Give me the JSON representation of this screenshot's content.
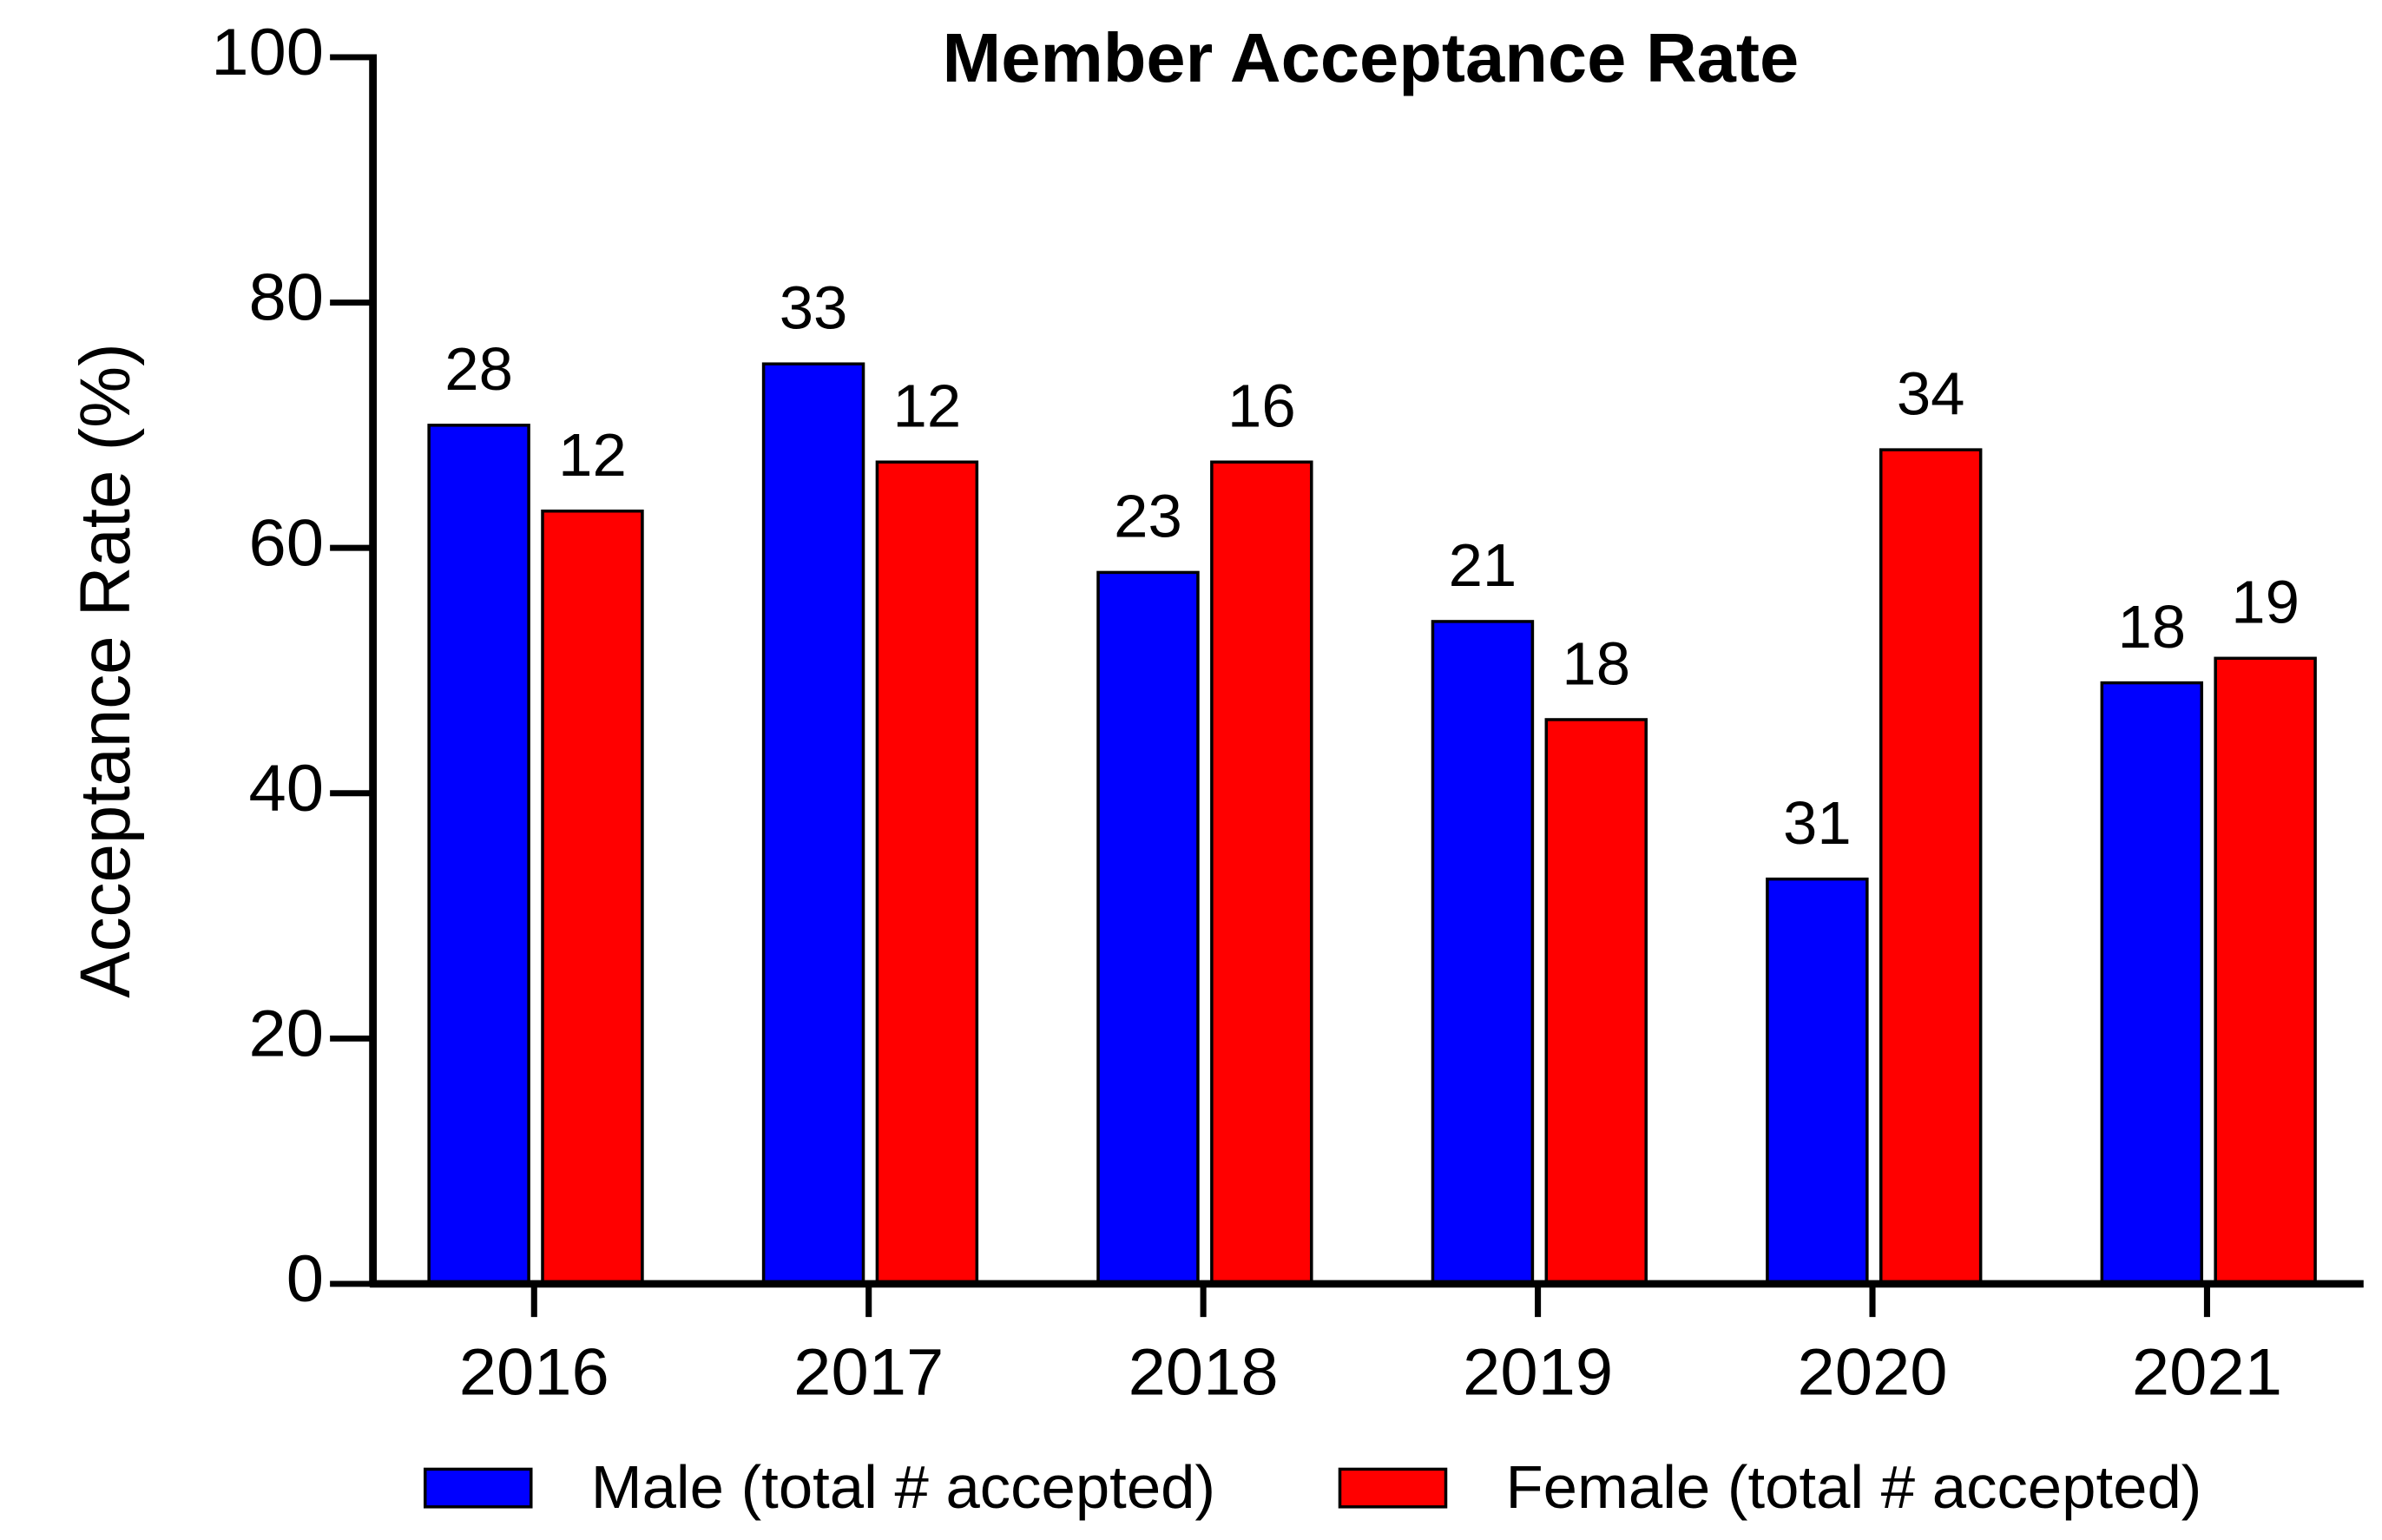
{
  "chart_data": {
    "type": "bar",
    "title": "Member Acceptance Rate",
    "y_label": "Acceptance Rate (%)",
    "categories": [
      "2016",
      "2017",
      "2018",
      "2019",
      "2020",
      "2021"
    ],
    "series": [
      {
        "name": "Male (total # accepted)",
        "color": "#0000ff",
        "values": [
          70,
          75,
          58,
          54,
          33,
          49
        ],
        "counts": [
          28,
          33,
          23,
          21,
          31,
          18
        ]
      },
      {
        "name": "Female (total # accepted)",
        "color": "#ff0000",
        "values": [
          63,
          67,
          67,
          46,
          68,
          51
        ],
        "counts": [
          12,
          12,
          16,
          18,
          34,
          19
        ]
      }
    ],
    "ylim": [
      0,
      100
    ],
    "yticks": [
      0,
      20,
      40,
      60,
      80,
      100
    ],
    "legend": "bottom"
  }
}
